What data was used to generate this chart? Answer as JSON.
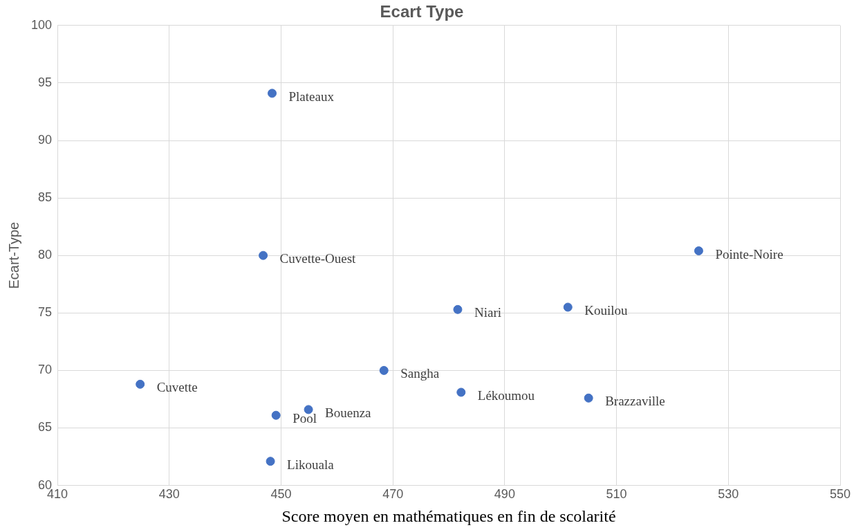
{
  "chart_data": {
    "type": "scatter",
    "title": "Ecart Type",
    "xlabel": "Score moyen en mathématiques en fin de scolarité",
    "ylabel": "Ecart-Type",
    "x": [
      448.4,
      446.8,
      524.7,
      481.6,
      501.3,
      468.4,
      424.8,
      482.2,
      505.0,
      449.1,
      454.9,
      448.1
    ],
    "values": [
      94.1,
      80.0,
      80.4,
      75.3,
      75.5,
      70.0,
      68.8,
      68.1,
      67.6,
      66.1,
      66.6,
      62.1
    ],
    "color": "#4472c4",
    "marker": "circle",
    "xlim": [
      410,
      550
    ],
    "xticks": [
      410,
      430,
      450,
      470,
      490,
      510,
      530,
      550
    ],
    "ylim": [
      60,
      100
    ],
    "yticks": [
      60,
      65,
      70,
      75,
      80,
      85,
      90,
      95,
      100
    ],
    "grid": true,
    "legend": false,
    "annotations": [
      {
        "text": "Plateaux",
        "x": 448.4,
        "y": 94.1
      },
      {
        "text": "Cuvette-Ouest",
        "x": 446.8,
        "y": 80.0
      },
      {
        "text": "Pointe-Noire",
        "x": 524.7,
        "y": 80.4
      },
      {
        "text": "Niari",
        "x": 481.6,
        "y": 75.3
      },
      {
        "text": "Kouilou",
        "x": 501.3,
        "y": 75.5
      },
      {
        "text": "Sangha",
        "x": 468.4,
        "y": 70.0
      },
      {
        "text": "Cuvette",
        "x": 424.8,
        "y": 68.8
      },
      {
        "text": "Lékoumou",
        "x": 482.2,
        "y": 68.1
      },
      {
        "text": "Brazzaville",
        "x": 505.0,
        "y": 67.6
      },
      {
        "text": "Pool",
        "x": 449.1,
        "y": 66.1
      },
      {
        "text": "Bouenza",
        "x": 454.9,
        "y": 66.6
      },
      {
        "text": "Likouala",
        "x": 448.1,
        "y": 62.1
      }
    ]
  }
}
